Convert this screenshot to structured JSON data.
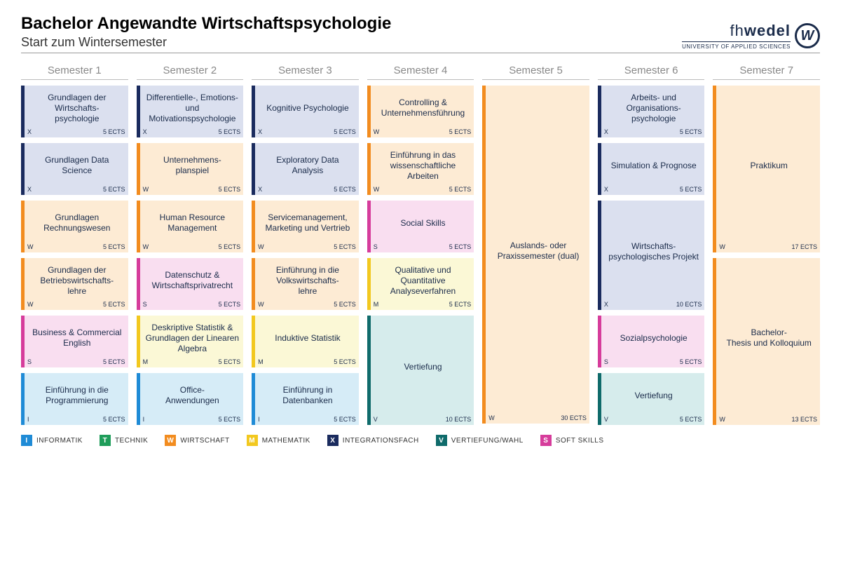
{
  "header": {
    "title": "Bachelor Angewandte Wirtschaftspsychologie",
    "subtitle": "Start zum Wintersemester",
    "brand_text_light": "fh",
    "brand_text_bold": "wedel",
    "brand_sub": "UNIVERSITY OF APPLIED SCIENCES",
    "brand_glyph": "W"
  },
  "categories": {
    "I": {
      "letter": "I",
      "label": "INFORMATIK",
      "bg": "#d6ecf7",
      "border": "#1f8bd6"
    },
    "T": {
      "letter": "T",
      "label": "TECHNIK",
      "bg": "#d9f0e2",
      "border": "#1f9d5a"
    },
    "W": {
      "letter": "W",
      "label": "WIRTSCHAFT",
      "bg": "#fdebd4",
      "border": "#f28c1f"
    },
    "M": {
      "letter": "M",
      "label": "MATHEMATIK",
      "bg": "#fbf8d6",
      "border": "#f2c81f"
    },
    "X": {
      "letter": "X",
      "label": "INTEGRATIONSFACH",
      "bg": "#dbe0ef",
      "border": "#1a2b5e"
    },
    "V": {
      "letter": "V",
      "label": "VERTIEFUNG/WAHL",
      "bg": "#d6ecec",
      "border": "#0f6b6b"
    },
    "S": {
      "letter": "S",
      "label": "SOFT SKILLS",
      "bg": "#f9def0",
      "border": "#d63c9b"
    }
  },
  "legend_order": [
    "I",
    "T",
    "W",
    "M",
    "X",
    "V",
    "S"
  ],
  "semesters": [
    {
      "title": "Semester 1",
      "modules": [
        {
          "cat": "X",
          "title": "Grundlagen der Wirtschafts-psychologie",
          "ects": "5 ECTS"
        },
        {
          "cat": "X",
          "title": "Grundlagen Data Science",
          "ects": "5 ECTS"
        },
        {
          "cat": "W",
          "title": "Grundlagen Rechnungswesen",
          "ects": "5 ECTS"
        },
        {
          "cat": "W",
          "title": "Grundlagen der Betriebswirtschafts-lehre",
          "ects": "5 ECTS"
        },
        {
          "cat": "S",
          "title": "Business & Commercial English",
          "ects": "5 ECTS"
        },
        {
          "cat": "I",
          "title": "Einführung in die Programmierung",
          "ects": "5 ECTS"
        }
      ]
    },
    {
      "title": "Semester 2",
      "modules": [
        {
          "cat": "X",
          "title": "Differentielle-, Emotions- und Motivationspsychologie",
          "ects": "5 ECTS"
        },
        {
          "cat": "W",
          "title": "Unternehmens-planspiel",
          "ects": "5 ECTS"
        },
        {
          "cat": "W",
          "title": "Human Resource Management",
          "ects": "5 ECTS"
        },
        {
          "cat": "S",
          "title": "Datenschutz & Wirtschaftsprivatrecht",
          "ects": "5 ECTS"
        },
        {
          "cat": "M",
          "title": "Deskriptive Statistik & Grundlagen der Linearen Algebra",
          "ects": "5 ECTS"
        },
        {
          "cat": "I",
          "title": "Office-Anwendungen",
          "ects": "5 ECTS"
        }
      ]
    },
    {
      "title": "Semester 3",
      "modules": [
        {
          "cat": "X",
          "title": "Kognitive Psychologie",
          "ects": "5 ECTS"
        },
        {
          "cat": "X",
          "title": "Exploratory Data Analysis",
          "ects": "5 ECTS"
        },
        {
          "cat": "W",
          "title": "Servicemanagement, Marketing und Vertrieb",
          "ects": "5 ECTS"
        },
        {
          "cat": "W",
          "title": "Einführung in die Volkswirtschafts-lehre",
          "ects": "5 ECTS"
        },
        {
          "cat": "M",
          "title": "Induktive Statistik",
          "ects": "5 ECTS"
        },
        {
          "cat": "I",
          "title": "Einführung in Datenbanken",
          "ects": "5 ECTS"
        }
      ]
    },
    {
      "title": "Semester 4",
      "modules": [
        {
          "cat": "W",
          "title": "Controlling & Unternehmensführung",
          "ects": "5 ECTS"
        },
        {
          "cat": "W",
          "title": "Einführung in das wissenschaftliche Arbeiten",
          "ects": "5 ECTS"
        },
        {
          "cat": "S",
          "title": "Social Skills",
          "ects": "5 ECTS"
        },
        {
          "cat": "M",
          "title": "Qualitative und Quantitative Analyseverfahren",
          "ects": "5 ECTS"
        },
        {
          "cat": "V",
          "title": "Vertiefung",
          "ects": "10 ECTS",
          "span": 2
        }
      ]
    },
    {
      "title": "Semester 5",
      "modules": [
        {
          "cat": "W",
          "title": "Auslands- oder Praxissemester (dual)",
          "ects": "30 ECTS",
          "span": 6
        }
      ]
    },
    {
      "title": "Semester 6",
      "modules": [
        {
          "cat": "X",
          "title": "Arbeits- und Organisations-psychologie",
          "ects": "5 ECTS"
        },
        {
          "cat": "X",
          "title": "Simulation & Prognose",
          "ects": "5 ECTS"
        },
        {
          "cat": "X",
          "title": "Wirtschafts-psychologisches Projekt",
          "ects": "10 ECTS",
          "span": 2
        },
        {
          "cat": "S",
          "title": "Sozialpsychologie",
          "ects": "5 ECTS"
        },
        {
          "cat": "V",
          "title": "Vertiefung",
          "ects": "5 ECTS"
        }
      ]
    },
    {
      "title": "Semester 7",
      "modules": [
        {
          "cat": "W",
          "title": "Praktikum",
          "ects": "17 ECTS",
          "span": 3
        },
        {
          "cat": "W",
          "title": "Bachelor-Thesis und Kolloquium",
          "ects": "13 ECTS",
          "span": 3
        }
      ]
    }
  ]
}
